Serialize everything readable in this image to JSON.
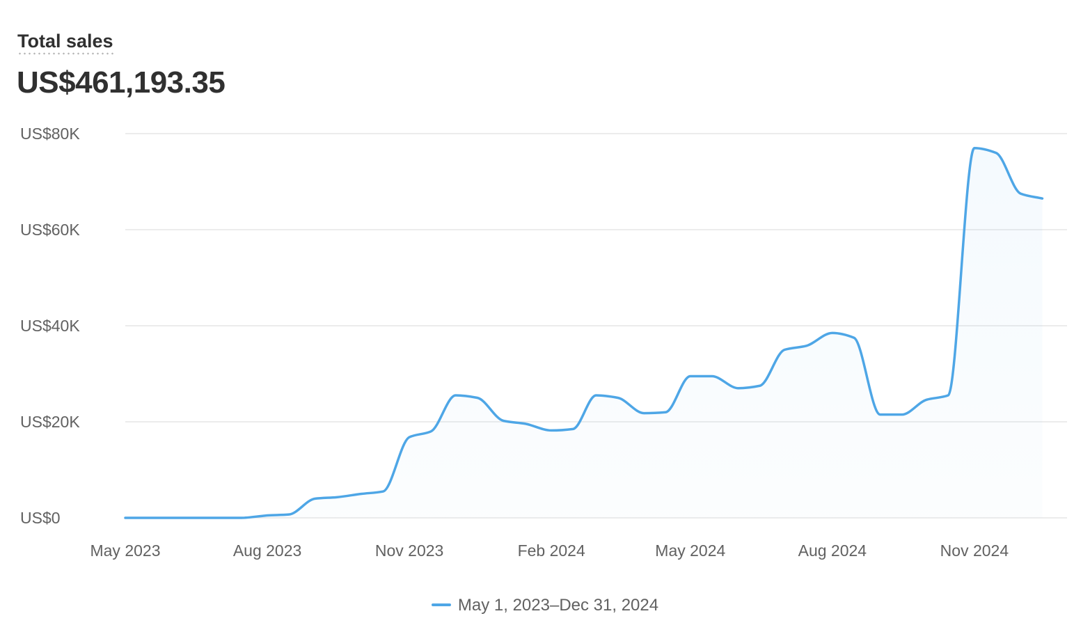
{
  "header": {
    "title": "Total sales",
    "total_value": "US$461,193.35"
  },
  "colors": {
    "series": "#4ea6e6",
    "gridline": "#e6e6e6",
    "axis_text": "#616161"
  },
  "legend": {
    "label": "May 1, 2023–Dec 31, 2024"
  },
  "chart_data": {
    "type": "line",
    "title": "Total sales",
    "xlabel": "",
    "ylabel": "",
    "ylim": [
      0,
      80000
    ],
    "yticks": [
      0,
      20000,
      40000,
      60000,
      80000
    ],
    "ytick_labels": [
      "US$0",
      "US$20K",
      "US$40K",
      "US$60K",
      "US$80K"
    ],
    "xtick_labels": [
      "May 2023",
      "Aug 2023",
      "Nov 2023",
      "Feb 2024",
      "May 2024",
      "Aug 2024",
      "Nov 2024"
    ],
    "grid": true,
    "legend_position": "bottom-center",
    "series": [
      {
        "name": "May 1, 2023–Dec 31, 2024",
        "x": [
          "2023-05-01",
          "2023-05-15",
          "2023-06-01",
          "2023-06-15",
          "2023-07-01",
          "2023-07-15",
          "2023-08-01",
          "2023-08-15",
          "2023-09-01",
          "2023-09-15",
          "2023-10-01",
          "2023-10-15",
          "2023-11-01",
          "2023-11-15",
          "2023-12-01",
          "2023-12-15",
          "2024-01-01",
          "2024-01-15",
          "2024-02-01",
          "2024-02-15",
          "2024-03-01",
          "2024-03-15",
          "2024-04-01",
          "2024-04-15",
          "2024-05-01",
          "2024-05-15",
          "2024-06-01",
          "2024-06-15",
          "2024-07-01",
          "2024-07-15",
          "2024-08-01",
          "2024-08-15",
          "2024-09-01",
          "2024-09-15",
          "2024-10-01",
          "2024-10-15",
          "2024-11-01",
          "2024-11-15",
          "2024-12-01",
          "2024-12-15"
        ],
        "values": [
          0,
          0,
          0,
          0,
          0,
          0,
          500,
          700,
          4000,
          4300,
          5000,
          5500,
          16800,
          18000,
          25500,
          25000,
          20200,
          19600,
          18200,
          18500,
          25500,
          25000,
          21800,
          22000,
          29500,
          29500,
          27000,
          27500,
          35000,
          35800,
          38500,
          37500,
          21500,
          21500,
          24600,
          25500,
          77000,
          76000,
          67500,
          66500
        ]
      }
    ]
  }
}
